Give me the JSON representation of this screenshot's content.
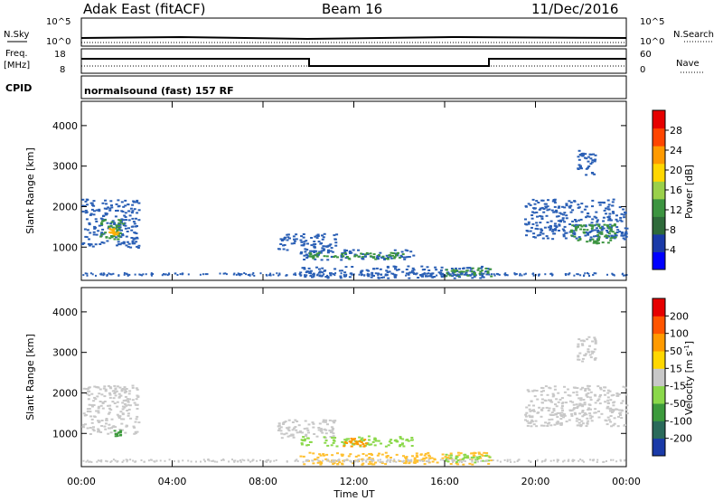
{
  "header": {
    "station": "Adak East (fitACF)",
    "beam": "Beam 16",
    "date": "11/Dec/2016"
  },
  "strips": {
    "nsky_label": "N.Sky",
    "nsearch_label": "N.Search",
    "freq_label_1": "Freq.",
    "freq_label_2": "[MHz]",
    "nave_label": "Nave",
    "cpid_label": "CPID",
    "cpid_text": "normalsound (fast) 157 RF",
    "nsky_ticks": [
      "10^5",
      "10^0"
    ],
    "nsearch_ticks": [
      "10^5",
      "10^0"
    ],
    "freq_ticks": [
      "18",
      "8"
    ],
    "nave_ticks": [
      "60",
      "0"
    ]
  },
  "colorbars": {
    "power": {
      "label": "Power [dB]",
      "ticks": [
        "28",
        "24",
        "20",
        "16",
        "12",
        "8",
        "4"
      ],
      "colors": [
        "#0000ff",
        "#1a3aa8",
        "#2e6a3a",
        "#3c9440",
        "#9ad04a",
        "#ffd700",
        "#ff9a00",
        "#ff4500",
        "#e60000"
      ]
    },
    "velocity": {
      "label": "Velocity [m s",
      "label_sup": "-1",
      "label_end": "]",
      "ticks": [
        "200",
        "100",
        "50",
        "15",
        "-15",
        "-50",
        "-100",
        "-200"
      ],
      "colors": [
        "#1a3aa8",
        "#2a6a5a",
        "#3c9a3c",
        "#8ad84a",
        "#c8c8c8",
        "#ffd700",
        "#ff9a00",
        "#ff5500",
        "#e60000"
      ]
    }
  },
  "chart_data": [
    {
      "type": "heatmap",
      "panel": "power",
      "ylabel": "Slant Range [km]",
      "xlabel": "",
      "x_ticks": [
        "00:00",
        "04:00",
        "08:00",
        "12:00",
        "16:00",
        "20:00",
        "00:00"
      ],
      "y_ticks": [
        "4000",
        "3000",
        "2000",
        "1000"
      ],
      "xlim_hours": [
        0,
        24
      ],
      "ylim_km": [
        180,
        4600
      ],
      "regions": [
        {
          "t0": 0.0,
          "t1": 2.5,
          "r0": 1000,
          "r1": 2200,
          "color": "#2a5fb5"
        },
        {
          "t0": 0.8,
          "t1": 1.8,
          "r0": 1200,
          "r1": 1700,
          "color": "#3c9440"
        },
        {
          "t0": 1.1,
          "t1": 1.6,
          "r0": 1300,
          "r1": 1500,
          "color": "#ffb000"
        },
        {
          "t0": 8.6,
          "t1": 11.2,
          "r0": 900,
          "r1": 1350,
          "color": "#2a5fb5"
        },
        {
          "t0": 9.6,
          "t1": 14.6,
          "r0": 700,
          "r1": 950,
          "color": "#2a5fb5"
        },
        {
          "t0": 10.0,
          "t1": 14.2,
          "r0": 720,
          "r1": 880,
          "color": "#3c9440"
        },
        {
          "t0": 9.6,
          "t1": 18.0,
          "r0": 250,
          "r1": 550,
          "color": "#2a5fb5"
        },
        {
          "t0": 16.0,
          "t1": 18.0,
          "r0": 300,
          "r1": 500,
          "color": "#3c9440"
        },
        {
          "t0": 19.5,
          "t1": 24.0,
          "r0": 1200,
          "r1": 2200,
          "color": "#2a5fb5"
        },
        {
          "t0": 21.5,
          "t1": 23.5,
          "r0": 1100,
          "r1": 1600,
          "color": "#3c9440"
        },
        {
          "t0": 21.8,
          "t1": 22.6,
          "r0": 2800,
          "r1": 3400,
          "color": "#2a5fb5"
        }
      ]
    },
    {
      "type": "heatmap",
      "panel": "velocity",
      "ylabel": "Slant Range [km]",
      "xlabel": "Time UT",
      "x_ticks": [
        "00:00",
        "04:00",
        "08:00",
        "12:00",
        "16:00",
        "20:00",
        "00:00"
      ],
      "y_ticks": [
        "4000",
        "3000",
        "2000",
        "1000"
      ],
      "xlim_hours": [
        0,
        24
      ],
      "ylim_km": [
        180,
        4600
      ],
      "regions": [
        {
          "t0": 0.0,
          "t1": 2.5,
          "r0": 1000,
          "r1": 2200,
          "color": "#c8c8c8"
        },
        {
          "t0": 1.4,
          "t1": 1.7,
          "r0": 950,
          "r1": 1100,
          "color": "#3c9a3c"
        },
        {
          "t0": 8.6,
          "t1": 11.2,
          "r0": 900,
          "r1": 1350,
          "color": "#c8c8c8"
        },
        {
          "t0": 9.6,
          "t1": 14.6,
          "r0": 700,
          "r1": 950,
          "color": "#8ad84a"
        },
        {
          "t0": 11.5,
          "t1": 12.5,
          "r0": 700,
          "r1": 900,
          "color": "#ff9a00"
        },
        {
          "t0": 9.6,
          "t1": 18.0,
          "r0": 250,
          "r1": 550,
          "color": "#ffc030"
        },
        {
          "t0": 16.0,
          "t1": 18.0,
          "r0": 300,
          "r1": 500,
          "color": "#8ad84a"
        },
        {
          "t0": 19.5,
          "t1": 24.0,
          "r0": 1200,
          "r1": 2200,
          "color": "#c8c8c8"
        },
        {
          "t0": 21.8,
          "t1": 22.6,
          "r0": 2800,
          "r1": 3400,
          "color": "#c8c8c8"
        }
      ]
    }
  ]
}
